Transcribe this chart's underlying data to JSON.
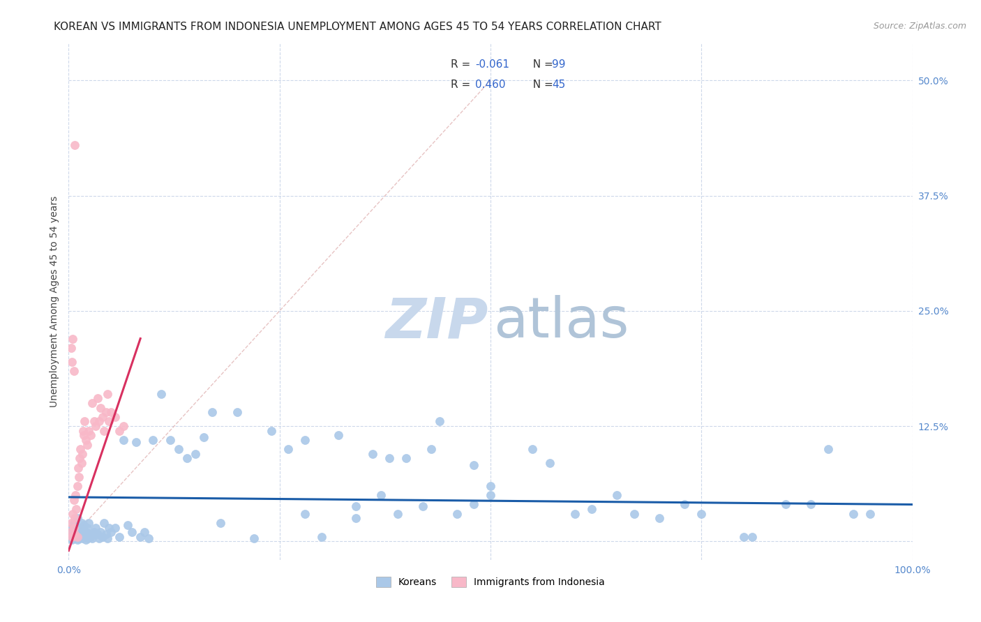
{
  "title": "KOREAN VS IMMIGRANTS FROM INDONESIA UNEMPLOYMENT AMONG AGES 45 TO 54 YEARS CORRELATION CHART",
  "source": "Source: ZipAtlas.com",
  "ylabel": "Unemployment Among Ages 45 to 54 years",
  "xlim": [
    0,
    1.0
  ],
  "ylim": [
    -0.02,
    0.54
  ],
  "korean_R": -0.061,
  "korean_N": 99,
  "indonesia_R": 0.46,
  "indonesia_N": 45,
  "korean_color": "#aac8e8",
  "korean_edge_color": "#aac8e8",
  "korean_line_color": "#1a5ca8",
  "indonesia_color": "#f8b8c8",
  "indonesia_edge_color": "#f8b8c8",
  "indonesia_line_color": "#d83060",
  "diag_color": "#ddaaaa",
  "grid_color": "#c8d4e8",
  "tick_color": "#5588cc",
  "title_color": "#222222",
  "ylabel_color": "#444444",
  "source_color": "#999999",
  "watermark_zip_color": "#c8d8ec",
  "watermark_atlas_color": "#b0c4d8",
  "title_fontsize": 11,
  "axis_label_fontsize": 10,
  "tick_fontsize": 10,
  "legend_fontsize": 11,
  "scatter_size": 75,
  "korean_line_x0": 0.0,
  "korean_line_x1": 1.0,
  "korean_line_y0": 0.048,
  "korean_line_y1": 0.04,
  "indonesia_line_x0": 0.0,
  "indonesia_line_x1": 0.085,
  "indonesia_line_y0": -0.01,
  "indonesia_line_y1": 0.22,
  "diag_line_x0": 0.0,
  "diag_line_x1": 0.5,
  "diag_line_y0": 0.0,
  "diag_line_y1": 0.5,
  "korean_scatter_x": [
    0.002,
    0.003,
    0.004,
    0.005,
    0.006,
    0.006,
    0.007,
    0.007,
    0.008,
    0.009,
    0.01,
    0.01,
    0.011,
    0.012,
    0.012,
    0.013,
    0.014,
    0.015,
    0.015,
    0.016,
    0.017,
    0.018,
    0.019,
    0.02,
    0.021,
    0.022,
    0.023,
    0.024,
    0.025,
    0.026,
    0.028,
    0.03,
    0.032,
    0.034,
    0.036,
    0.038,
    0.04,
    0.042,
    0.044,
    0.046,
    0.048,
    0.05,
    0.055,
    0.06,
    0.065,
    0.07,
    0.075,
    0.08,
    0.085,
    0.09,
    0.095,
    0.1,
    0.11,
    0.12,
    0.13,
    0.14,
    0.15,
    0.16,
    0.17,
    0.18,
    0.2,
    0.22,
    0.24,
    0.26,
    0.28,
    0.3,
    0.32,
    0.34,
    0.36,
    0.38,
    0.4,
    0.42,
    0.44,
    0.46,
    0.48,
    0.5,
    0.55,
    0.6,
    0.65,
    0.7,
    0.75,
    0.8,
    0.85,
    0.9,
    0.95,
    0.37,
    0.28,
    0.43,
    0.5,
    0.57,
    0.34,
    0.62,
    0.48,
    0.39,
    0.67,
    0.73,
    0.81,
    0.88,
    0.93
  ],
  "korean_scatter_y": [
    0.005,
    0.01,
    0.002,
    0.015,
    0.008,
    0.02,
    0.003,
    0.018,
    0.012,
    0.006,
    0.002,
    0.025,
    0.008,
    0.003,
    0.015,
    0.01,
    0.004,
    0.02,
    0.008,
    0.003,
    0.012,
    0.018,
    0.005,
    0.002,
    0.01,
    0.015,
    0.003,
    0.02,
    0.008,
    0.005,
    0.003,
    0.01,
    0.015,
    0.008,
    0.003,
    0.01,
    0.005,
    0.02,
    0.008,
    0.003,
    0.015,
    0.01,
    0.015,
    0.005,
    0.11,
    0.018,
    0.01,
    0.108,
    0.005,
    0.01,
    0.003,
    0.11,
    0.16,
    0.11,
    0.1,
    0.09,
    0.095,
    0.113,
    0.14,
    0.02,
    0.14,
    0.003,
    0.12,
    0.1,
    0.11,
    0.005,
    0.115,
    0.038,
    0.095,
    0.09,
    0.09,
    0.038,
    0.13,
    0.03,
    0.083,
    0.05,
    0.1,
    0.03,
    0.05,
    0.025,
    0.03,
    0.005,
    0.04,
    0.1,
    0.03,
    0.05,
    0.03,
    0.1,
    0.06,
    0.085,
    0.025,
    0.035,
    0.04,
    0.03,
    0.03,
    0.04,
    0.005,
    0.04,
    0.03
  ],
  "indonesia_scatter_x": [
    0.002,
    0.003,
    0.004,
    0.005,
    0.006,
    0.006,
    0.007,
    0.007,
    0.008,
    0.009,
    0.01,
    0.01,
    0.011,
    0.012,
    0.013,
    0.014,
    0.015,
    0.016,
    0.017,
    0.018,
    0.019,
    0.02,
    0.022,
    0.024,
    0.026,
    0.028,
    0.03,
    0.032,
    0.034,
    0.036,
    0.038,
    0.04,
    0.042,
    0.044,
    0.046,
    0.048,
    0.05,
    0.055,
    0.06,
    0.065,
    0.003,
    0.004,
    0.005,
    0.006,
    0.007
  ],
  "indonesia_scatter_y": [
    0.01,
    0.02,
    0.005,
    0.03,
    0.015,
    0.045,
    0.008,
    0.025,
    0.05,
    0.035,
    0.005,
    0.06,
    0.08,
    0.07,
    0.09,
    0.1,
    0.085,
    0.095,
    0.12,
    0.115,
    0.13,
    0.11,
    0.105,
    0.12,
    0.115,
    0.15,
    0.13,
    0.125,
    0.155,
    0.13,
    0.145,
    0.135,
    0.12,
    0.14,
    0.16,
    0.13,
    0.14,
    0.135,
    0.12,
    0.125,
    0.21,
    0.195,
    0.22,
    0.185,
    0.43
  ]
}
